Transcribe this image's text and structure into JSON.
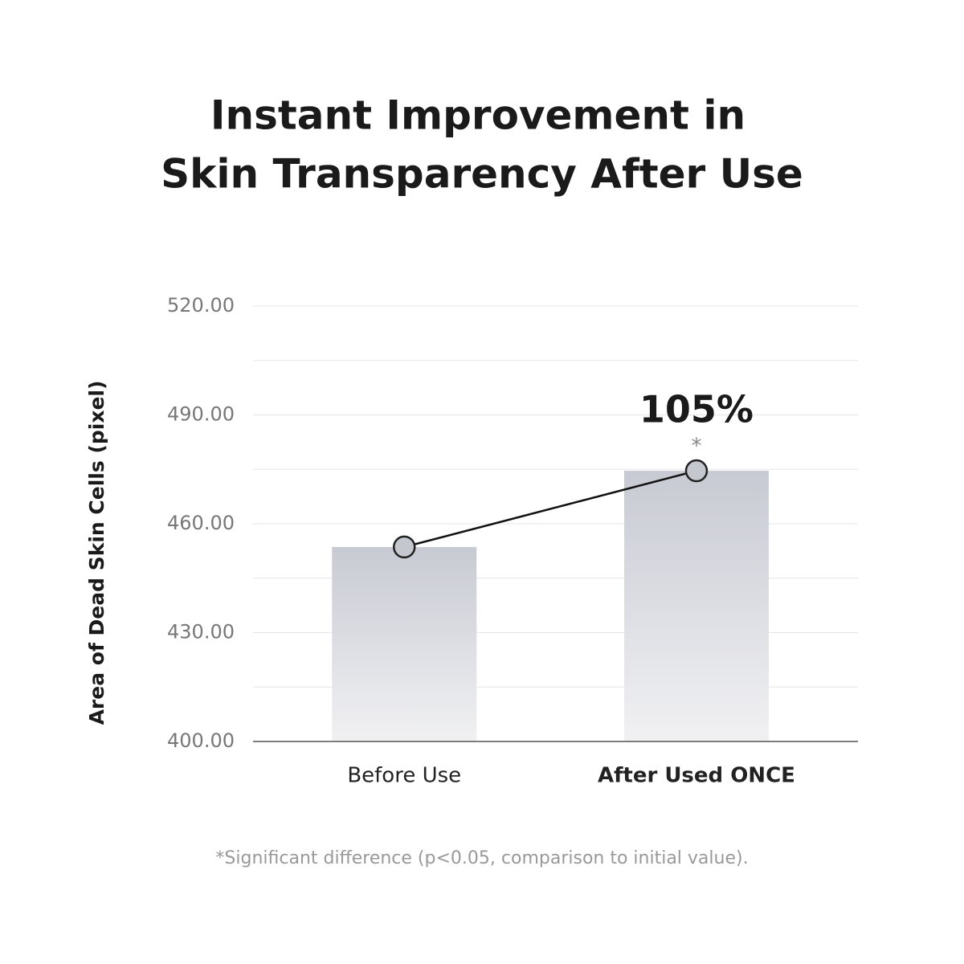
{
  "chart_data": {
    "type": "bar",
    "title": [
      "Instant Improvement in",
      "Skin Transparency After Use"
    ],
    "y_label": "Area of Dead Skin Cells (pixel)",
    "categories": [
      "Before Use",
      "After Used ONCE"
    ],
    "category_font_weights": [
      "normal",
      "bold"
    ],
    "values": [
      453.6,
      474.6
    ],
    "overlay_line": true,
    "bar_gradient": [
      "#c8cad3",
      "#f1f1f3"
    ],
    "line_color": "#111111",
    "marker_color": "#c5c7cf",
    "ylim": [
      400,
      520
    ],
    "yticks": [
      {
        "value": 400,
        "label": "400.00"
      },
      {
        "value": 430,
        "label": "430.00"
      },
      {
        "value": 460,
        "label": "460.00"
      },
      {
        "value": 490,
        "label": "490.00"
      },
      {
        "value": 520,
        "label": "520.00"
      }
    ],
    "minor_grid": [
      415,
      445,
      475,
      505
    ],
    "grid": true,
    "change_label": "105%",
    "significance_mark": "*",
    "footnote": "*Significant difference (p<0.05, comparison to initial value)."
  }
}
